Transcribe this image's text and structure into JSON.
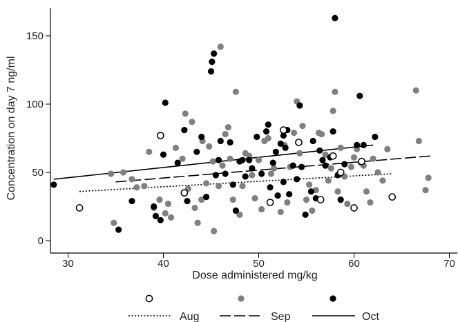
{
  "chart_data": {
    "type": "scatter",
    "xlabel": "Dose administered mg/kg",
    "ylabel": "Concentration on day 7 ng/ml",
    "xlim": [
      28,
      70
    ],
    "ylim": [
      -6,
      170
    ],
    "xticks": [
      30,
      40,
      50,
      60,
      70
    ],
    "yticks": [
      0,
      50,
      100,
      150
    ],
    "grid": false,
    "legend_position": "bottom",
    "series": [
      {
        "name": "Aug",
        "marker": "open-circle",
        "color": "#000000",
        "line_style": "dotted",
        "fit": [
          [
            31.2,
            36
          ],
          [
            64,
            49
          ]
        ],
        "points": [
          [
            31.2,
            24
          ],
          [
            39.7,
            77
          ],
          [
            42.2,
            35
          ],
          [
            51.2,
            28
          ],
          [
            52.6,
            81
          ],
          [
            54.2,
            72
          ],
          [
            56.5,
            30
          ],
          [
            57.8,
            62
          ],
          [
            58.6,
            50
          ],
          [
            60,
            24
          ],
          [
            60.8,
            58
          ],
          [
            64,
            32
          ]
        ]
      },
      {
        "name": "Sep",
        "marker": "filled-circle",
        "color": "#808080",
        "line_style": "dashed",
        "fit": [
          [
            35,
            43
          ],
          [
            68,
            62
          ]
        ],
        "points": [
          [
            34.5,
            49
          ],
          [
            34.8,
            13
          ],
          [
            35.8,
            50
          ],
          [
            36.7,
            45
          ],
          [
            37.2,
            39
          ],
          [
            38,
            40
          ],
          [
            38.5,
            65
          ],
          [
            39,
            24
          ],
          [
            39.6,
            30
          ],
          [
            40.2,
            20
          ],
          [
            40.5,
            27
          ],
          [
            40.8,
            17
          ],
          [
            41.3,
            68
          ],
          [
            42,
            60
          ],
          [
            42.3,
            93
          ],
          [
            42.6,
            38
          ],
          [
            43,
            87
          ],
          [
            43.3,
            24
          ],
          [
            43.6,
            13
          ],
          [
            44,
            30
          ],
          [
            44.5,
            42
          ],
          [
            44.8,
            69
          ],
          [
            45.2,
            58
          ],
          [
            45.8,
            40
          ],
          [
            46,
            142
          ],
          [
            46.2,
            55
          ],
          [
            46.5,
            78
          ],
          [
            46.8,
            83
          ],
          [
            47,
            60
          ],
          [
            47.3,
            30
          ],
          [
            47.6,
            109
          ],
          [
            48,
            19
          ],
          [
            48.3,
            40
          ],
          [
            48.6,
            64
          ],
          [
            49,
            62
          ],
          [
            49.3,
            48
          ],
          [
            49.6,
            31
          ],
          [
            50,
            59
          ],
          [
            50.3,
            23
          ],
          [
            50.6,
            73
          ],
          [
            51,
            75
          ],
          [
            51.3,
            49
          ],
          [
            51.6,
            53
          ],
          [
            52,
            33
          ],
          [
            52.3,
            21
          ],
          [
            52.7,
            70
          ],
          [
            53,
            28
          ],
          [
            53.3,
            54
          ],
          [
            53.7,
            79
          ],
          [
            54,
            102
          ],
          [
            54.3,
            64
          ],
          [
            54.6,
            84
          ],
          [
            55,
            30
          ],
          [
            55.3,
            41
          ],
          [
            55.6,
            22
          ],
          [
            56,
            37
          ],
          [
            56.3,
            79
          ],
          [
            56.6,
            78
          ],
          [
            57,
            63
          ],
          [
            57.3,
            44
          ],
          [
            57.6,
            53
          ],
          [
            57.8,
            95
          ],
          [
            58,
            109
          ],
          [
            58.3,
            36
          ],
          [
            58.6,
            68
          ],
          [
            59,
            47
          ],
          [
            59.3,
            27
          ],
          [
            59.7,
            54
          ],
          [
            60,
            61
          ],
          [
            60.3,
            67
          ],
          [
            60.7,
            57
          ],
          [
            61,
            55
          ],
          [
            61.3,
            36
          ],
          [
            61.7,
            28
          ],
          [
            62,
            60
          ],
          [
            62.5,
            50
          ],
          [
            63,
            44
          ],
          [
            63.5,
            67
          ],
          [
            66.5,
            110
          ],
          [
            66.8,
            73
          ],
          [
            67.5,
            37
          ],
          [
            67.8,
            46
          ],
          [
            45.3,
            7
          ],
          [
            44.1,
            73
          ]
        ]
      },
      {
        "name": "Oct",
        "marker": "filled-circle",
        "color": "#000000",
        "line_style": "solid",
        "fit": [
          [
            28.5,
            45
          ],
          [
            62,
            70
          ]
        ],
        "points": [
          [
            28.5,
            41
          ],
          [
            35.3,
            8
          ],
          [
            36.7,
            29
          ],
          [
            39,
            25
          ],
          [
            39.2,
            18
          ],
          [
            39.7,
            15
          ],
          [
            40,
            63
          ],
          [
            40.2,
            101
          ],
          [
            41.5,
            57
          ],
          [
            42.2,
            81
          ],
          [
            42.5,
            29
          ],
          [
            43.5,
            65
          ],
          [
            44,
            76
          ],
          [
            44.5,
            32
          ],
          [
            45,
            124
          ],
          [
            45.1,
            131
          ],
          [
            45.3,
            137
          ],
          [
            45.5,
            48
          ],
          [
            45.8,
            59
          ],
          [
            46,
            73
          ],
          [
            46.5,
            49
          ],
          [
            47,
            72
          ],
          [
            47.3,
            41
          ],
          [
            47.6,
            22
          ],
          [
            48,
            58
          ],
          [
            48.3,
            59
          ],
          [
            48.6,
            47
          ],
          [
            49,
            59
          ],
          [
            49.3,
            53
          ],
          [
            49.8,
            76
          ],
          [
            50.3,
            49
          ],
          [
            50.8,
            80
          ],
          [
            51,
            85
          ],
          [
            51.2,
            39
          ],
          [
            51.5,
            57
          ],
          [
            51.8,
            65
          ],
          [
            52,
            33
          ],
          [
            52.3,
            71
          ],
          [
            52.6,
            77
          ],
          [
            52.8,
            68
          ],
          [
            53,
            81
          ],
          [
            53.2,
            34
          ],
          [
            53.6,
            55
          ],
          [
            54,
            45
          ],
          [
            54.3,
            99
          ],
          [
            54.5,
            54
          ],
          [
            54.9,
            19
          ],
          [
            55.5,
            36
          ],
          [
            56,
            31
          ],
          [
            56.4,
            66
          ],
          [
            56.7,
            59
          ],
          [
            57,
            55
          ],
          [
            57.5,
            61
          ],
          [
            57.8,
            80
          ],
          [
            58,
            163
          ],
          [
            58.3,
            48
          ],
          [
            58.6,
            30
          ],
          [
            59,
            56
          ],
          [
            60.3,
            70
          ],
          [
            60.6,
            106
          ],
          [
            61,
            70
          ],
          [
            62.2,
            76
          ],
          [
            55.7,
            73
          ],
          [
            52.6,
            43
          ]
        ]
      }
    ]
  }
}
